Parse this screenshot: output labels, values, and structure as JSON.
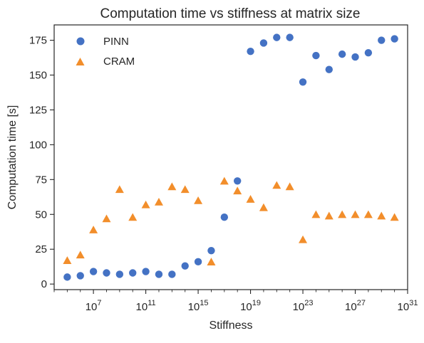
{
  "chart_data": {
    "type": "scatter",
    "title": "Computation time vs stiffness at matrix size",
    "xlabel": "Stiffness",
    "ylabel": "Computation time [s]",
    "x_scale": "log",
    "xlim": [
      10000.0,
      1e+31
    ],
    "ylim": [
      -4,
      186
    ],
    "x_ticks": [
      10000000.0,
      100000000000.0,
      1000000000000000.0,
      1e+19,
      1e+23,
      1e+27,
      1e+31
    ],
    "x_tick_labels": [
      {
        "base": "10",
        "exp": "7"
      },
      {
        "base": "10",
        "exp": "11"
      },
      {
        "base": "10",
        "exp": "15"
      },
      {
        "base": "10",
        "exp": "19"
      },
      {
        "base": "10",
        "exp": "23"
      },
      {
        "base": "10",
        "exp": "27"
      },
      {
        "base": "10",
        "exp": "31"
      }
    ],
    "y_ticks": [
      0,
      25,
      50,
      75,
      100,
      125,
      150,
      175
    ],
    "y_tick_labels": [
      "0",
      "25",
      "50",
      "75",
      "100",
      "125",
      "150",
      "175"
    ],
    "grid": false,
    "legend_position": "top-left",
    "series": [
      {
        "name": "PINN",
        "marker": "circle",
        "color": "#4472C4",
        "points": [
          {
            "x": 100000.0,
            "y": 5
          },
          {
            "x": 1000000.0,
            "y": 6
          },
          {
            "x": 10000000.0,
            "y": 9
          },
          {
            "x": 100000000.0,
            "y": 8
          },
          {
            "x": 1000000000.0,
            "y": 7
          },
          {
            "x": 10000000000.0,
            "y": 8
          },
          {
            "x": 100000000000.0,
            "y": 9
          },
          {
            "x": 1000000000000.0,
            "y": 7
          },
          {
            "x": 10000000000000.0,
            "y": 7
          },
          {
            "x": 100000000000000.0,
            "y": 13
          },
          {
            "x": 1000000000000000.0,
            "y": 16
          },
          {
            "x": 1e+16,
            "y": 24
          },
          {
            "x": 1e+17,
            "y": 48
          },
          {
            "x": 1e+18,
            "y": 74
          },
          {
            "x": 1e+19,
            "y": 167
          },
          {
            "x": 1e+20,
            "y": 173
          },
          {
            "x": 1e+21,
            "y": 177
          },
          {
            "x": 1e+22,
            "y": 177
          },
          {
            "x": 1e+23,
            "y": 145
          },
          {
            "x": 1e+24,
            "y": 164
          },
          {
            "x": 1e+25,
            "y": 154
          },
          {
            "x": 1e+26,
            "y": 165
          },
          {
            "x": 1e+27,
            "y": 163
          },
          {
            "x": 1e+28,
            "y": 166
          },
          {
            "x": 1e+29,
            "y": 175
          },
          {
            "x": 1e+30,
            "y": 176
          }
        ]
      },
      {
        "name": "CRAM",
        "marker": "triangle",
        "color": "#F28E2B",
        "points": [
          {
            "x": 100000.0,
            "y": 17
          },
          {
            "x": 1000000.0,
            "y": 21
          },
          {
            "x": 10000000.0,
            "y": 39
          },
          {
            "x": 100000000.0,
            "y": 47
          },
          {
            "x": 1000000000.0,
            "y": 68
          },
          {
            "x": 10000000000.0,
            "y": 48
          },
          {
            "x": 100000000000.0,
            "y": 57
          },
          {
            "x": 1000000000000.0,
            "y": 59
          },
          {
            "x": 10000000000000.0,
            "y": 70
          },
          {
            "x": 100000000000000.0,
            "y": 68
          },
          {
            "x": 1000000000000000.0,
            "y": 60
          },
          {
            "x": 1e+16,
            "y": 16
          },
          {
            "x": 1e+17,
            "y": 74
          },
          {
            "x": 1e+18,
            "y": 67
          },
          {
            "x": 1e+19,
            "y": 61
          },
          {
            "x": 1e+20,
            "y": 55
          },
          {
            "x": 1e+21,
            "y": 71
          },
          {
            "x": 1e+22,
            "y": 70
          },
          {
            "x": 1e+23,
            "y": 32
          },
          {
            "x": 1e+24,
            "y": 50
          },
          {
            "x": 1e+25,
            "y": 49
          },
          {
            "x": 1e+26,
            "y": 50
          },
          {
            "x": 1e+27,
            "y": 50
          },
          {
            "x": 1e+28,
            "y": 50
          },
          {
            "x": 1e+29,
            "y": 49
          },
          {
            "x": 1e+30,
            "y": 48
          }
        ]
      }
    ]
  }
}
